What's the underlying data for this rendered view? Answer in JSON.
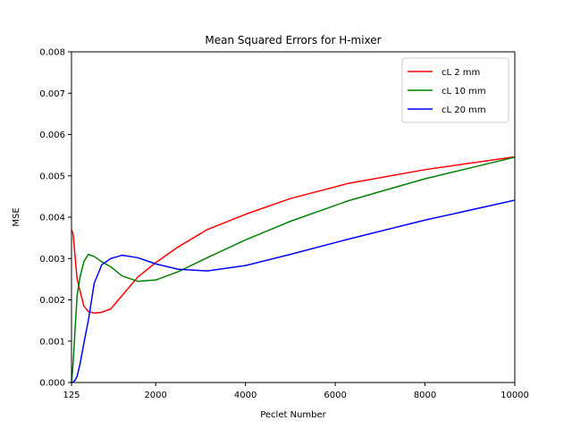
{
  "chart_data": {
    "type": "line",
    "title": "Mean Squared Errors for H-mixer",
    "xlabel": "Peclet Number",
    "ylabel": "MSE",
    "xlim": [
      125,
      10000
    ],
    "ylim": [
      0,
      0.008
    ],
    "xticks": [
      125,
      2000,
      4000,
      6000,
      8000,
      10000
    ],
    "xtick_labels": [
      "125",
      "2000",
      "4000",
      "6000",
      "8000",
      "10000"
    ],
    "yticks": [
      0,
      0.001,
      0.002,
      0.003,
      0.004,
      0.005,
      0.006,
      0.007,
      0.008
    ],
    "ytick_labels": [
      "0.000",
      "0.001",
      "0.002",
      "0.003",
      "0.004",
      "0.005",
      "0.006",
      "0.007",
      "0.008"
    ],
    "legend_position": "top-right",
    "grid": false,
    "series": [
      {
        "name": "cL 2 mm",
        "color": "#ff0000",
        "x": [
          125,
          160,
          250,
          400,
          500,
          630,
          800,
          1000,
          1600,
          2000,
          2500,
          3150,
          4000,
          5000,
          6300,
          8000,
          10000
        ],
        "y": [
          0.0037,
          0.0036,
          0.0025,
          0.00185,
          0.00172,
          0.00168,
          0.0017,
          0.00178,
          0.00255,
          0.0029,
          0.00328,
          0.0037,
          0.00407,
          0.00445,
          0.00482,
          0.00515,
          0.00546
        ]
      },
      {
        "name": "cL 10 mm",
        "color": "#008000",
        "x": [
          125,
          160,
          200,
          250,
          315,
          400,
          500,
          630,
          800,
          1000,
          1250,
          1600,
          2000,
          2500,
          3150,
          4000,
          5000,
          6300,
          8000,
          10000
        ],
        "y": [
          0.0,
          0.00045,
          0.0012,
          0.0021,
          0.00255,
          0.00292,
          0.0031,
          0.00305,
          0.00292,
          0.0028,
          0.00258,
          0.00245,
          0.00248,
          0.00268,
          0.00302,
          0.00345,
          0.0039,
          0.0044,
          0.00493,
          0.00545
        ]
      },
      {
        "name": "cL 20 mm",
        "color": "#0000ff",
        "x": [
          125,
          160,
          200,
          250,
          315,
          400,
          500,
          630,
          800,
          1000,
          1250,
          1600,
          2000,
          2500,
          3150,
          4000,
          5000,
          6300,
          8000,
          10000
        ],
        "y": [
          0.0,
          1e-05,
          5e-05,
          0.00015,
          0.00045,
          0.00095,
          0.0015,
          0.0024,
          0.00285,
          0.003,
          0.00308,
          0.00302,
          0.00287,
          0.00274,
          0.0027,
          0.00283,
          0.0031,
          0.00347,
          0.00393,
          0.00441
        ]
      }
    ]
  }
}
